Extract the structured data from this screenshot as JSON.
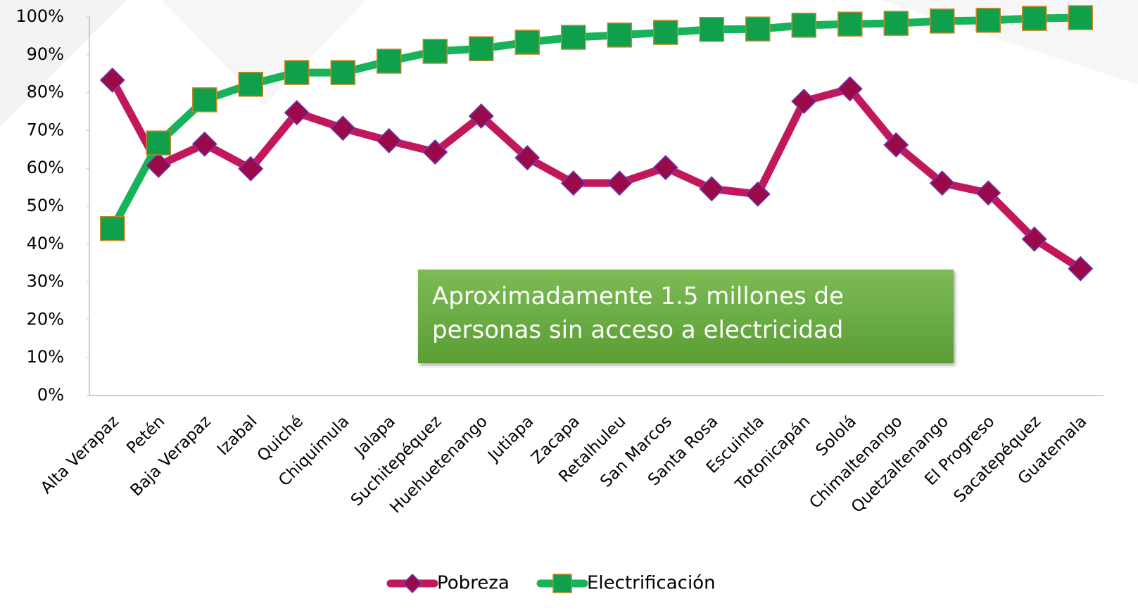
{
  "chart_data": {
    "type": "line",
    "categories": [
      "Alta Verapaz",
      "Petén",
      "Baja Verapaz",
      "Izabal",
      "Quiché",
      "Chiquimula",
      "Jalapa",
      "Suchitepéquez",
      "Huehuetenango",
      "Jutiapa",
      "Zacapa",
      "Retalhuleu",
      "San Marcos",
      "Santa Rosa",
      "Escuintla",
      "Totonicapán",
      "Sololá",
      "Chimaltenango",
      "Quetzaltenango",
      "El Progreso",
      "Sacatepéquez",
      "Guatemala"
    ],
    "series": [
      {
        "name": "Pobreza",
        "color": "#c2185b",
        "marker": "diamond",
        "marker_color": "#9a0a4a",
        "values": [
          83.3,
          60.8,
          66.4,
          59.9,
          74.7,
          70.6,
          67.3,
          64.3,
          73.8,
          62.8,
          56.1,
          56.1,
          60.2,
          54.6,
          53.2,
          77.7,
          81.0,
          66.2,
          56.1,
          53.5,
          41.3,
          33.5
        ]
      },
      {
        "name": "Electrificación",
        "color": "#16b35a",
        "marker": "square",
        "marker_color": "#10a04c",
        "values": [
          44.1,
          66.7,
          78.1,
          82.2,
          85.3,
          85.3,
          88.3,
          90.9,
          91.6,
          93.3,
          94.6,
          95.2,
          95.9,
          96.7,
          96.8,
          97.8,
          98.1,
          98.3,
          98.9,
          99.1,
          99.6,
          99.8
        ]
      }
    ],
    "ylim": [
      0,
      100
    ],
    "yticks": [
      {
        "value": 0,
        "label": "0%"
      },
      {
        "value": 10,
        "label": "10%"
      },
      {
        "value": 20,
        "label": "20%"
      },
      {
        "value": 30,
        "label": "30%"
      },
      {
        "value": 40,
        "label": "40%"
      },
      {
        "value": 50,
        "label": "50%"
      },
      {
        "value": 60,
        "label": "60%"
      },
      {
        "value": 70,
        "label": "70%"
      },
      {
        "value": 80,
        "label": "80%"
      },
      {
        "value": 90,
        "label": "90%"
      },
      {
        "value": 100,
        "label": "100%"
      }
    ],
    "grid": false,
    "legend": "bottom",
    "annotation": "Aproximadamente 1.5 millones de personas sin acceso a electricidad"
  }
}
